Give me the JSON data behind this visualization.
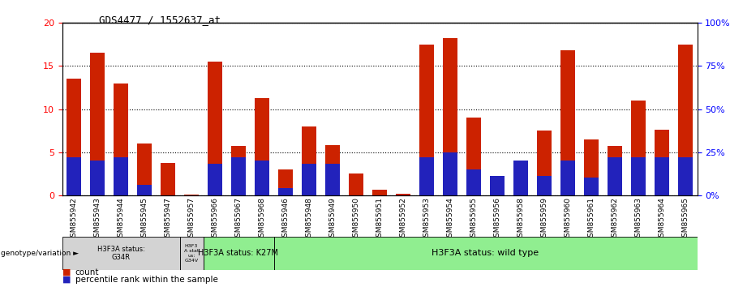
{
  "title": "GDS4477 / 1552637_at",
  "samples": [
    "GSM855942",
    "GSM855943",
    "GSM855944",
    "GSM855945",
    "GSM855947",
    "GSM855957",
    "GSM855966",
    "GSM855967",
    "GSM855968",
    "GSM855946",
    "GSM855948",
    "GSM855949",
    "GSM855950",
    "GSM855951",
    "GSM855952",
    "GSM855953",
    "GSM855954",
    "GSM855955",
    "GSM855956",
    "GSM855958",
    "GSM855959",
    "GSM855960",
    "GSM855961",
    "GSM855962",
    "GSM855963",
    "GSM855964",
    "GSM855965"
  ],
  "counts": [
    13.5,
    16.5,
    13.0,
    6.0,
    3.7,
    0.1,
    15.5,
    5.7,
    11.3,
    3.0,
    8.0,
    5.8,
    2.5,
    0.6,
    0.2,
    17.5,
    18.2,
    9.0,
    2.2,
    4.0,
    7.5,
    16.8,
    6.5,
    5.7,
    11.0,
    7.6,
    17.5
  ],
  "percentile_ranks_pct": [
    22,
    20,
    22,
    6,
    0,
    0,
    18,
    22,
    20,
    4,
    18,
    18,
    0,
    0,
    0,
    22,
    25,
    15,
    11,
    20,
    11,
    20,
    10,
    22,
    22,
    22,
    22
  ],
  "groups": {
    "G34R": [
      0,
      1,
      2,
      3,
      4
    ],
    "G34V": [
      5
    ],
    "K27M": [
      6,
      7,
      8
    ],
    "wild_type": [
      9,
      10,
      11,
      12,
      13,
      14,
      15,
      16,
      17,
      18,
      19,
      20,
      21,
      22,
      23,
      24,
      25,
      26
    ]
  },
  "group_labels": {
    "G34R": "H3F3A status:\nG34R",
    "G34V": "H3F3\nA stat\nus:\nG34V",
    "K27M": "H3F3A status: K27M",
    "wild_type": "H3F3A status: wild type"
  },
  "group_colors": {
    "G34R": "#d3d3d3",
    "G34V": "#d3d3d3",
    "K27M": "#90ee90",
    "wild_type": "#90ee90"
  },
  "bar_color": "#cc2200",
  "pct_color": "#2222bb",
  "ylim_left": [
    0,
    20
  ],
  "ylim_right": [
    0,
    100
  ],
  "yticks_left": [
    0,
    5,
    10,
    15,
    20
  ],
  "yticks_right": [
    0,
    25,
    50,
    75,
    100
  ],
  "ytick_labels_left": [
    "0",
    "5",
    "10",
    "15",
    "20"
  ],
  "ytick_labels_right": [
    "0%",
    "25%",
    "50%",
    "75%",
    "100%"
  ],
  "legend_count_label": "count",
  "legend_pct_label": "percentile rank within the sample",
  "genotype_label": "genotype/variation"
}
